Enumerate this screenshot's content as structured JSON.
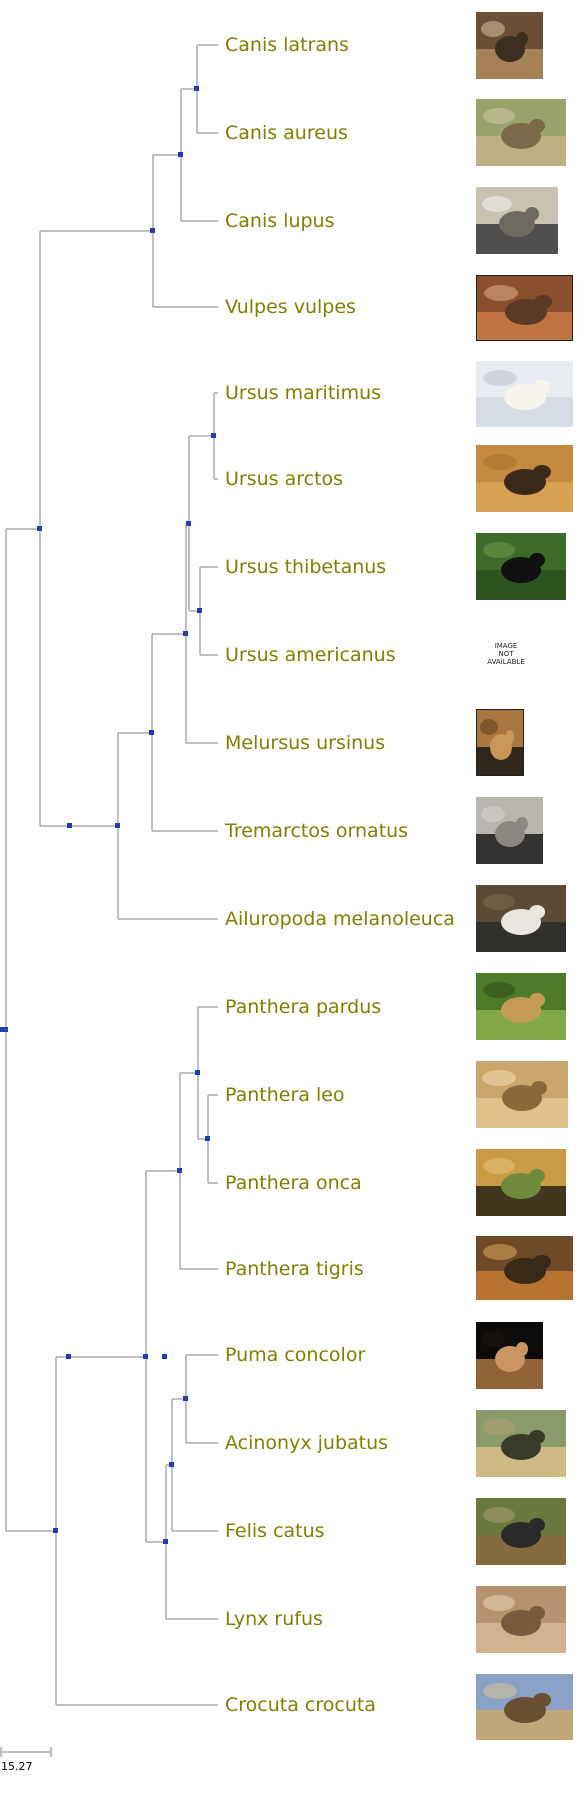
{
  "tree": {
    "leaves": [
      {
        "id": "canis-latrans",
        "label": "Canis latrans",
        "image": "coyote",
        "colors": [
          "#6b4f34",
          "#b08a5c",
          "#3d2f22",
          "#d9c3a0"
        ]
      },
      {
        "id": "canis-aureus",
        "label": "Canis aureus",
        "image": "golden-jackal",
        "colors": [
          "#9aa36b",
          "#c4b38a",
          "#7c6a4c",
          "#d2c9a6"
        ]
      },
      {
        "id": "canis-lupus",
        "label": "Canis lupus",
        "image": "wolf",
        "colors": [
          "#c9c2b3",
          "#3a3a3a",
          "#6e6a62",
          "#f2f2f2"
        ]
      },
      {
        "id": "vulpes-vulpes",
        "label": "Vulpes vulpes",
        "image": "red-fox",
        "colors": [
          "#8a4f2d",
          "#c97a45",
          "#5b3a26",
          "#e0b38a"
        ]
      },
      {
        "id": "ursus-maritimus",
        "label": "Ursus maritimus",
        "image": "polar-bear",
        "colors": [
          "#e8ecf2",
          "#d4dae3",
          "#f7f5ee",
          "#b9c1cc"
        ]
      },
      {
        "id": "ursus-arctos",
        "label": "Ursus arctos",
        "image": "brown-bear",
        "colors": [
          "#c48a3f",
          "#d9a456",
          "#3b2a1c",
          "#a8702e"
        ]
      },
      {
        "id": "ursus-thibetanus",
        "label": "Ursus thibetanus",
        "image": "asiatic-black-bear",
        "colors": [
          "#3f6b2a",
          "#2b4d1f",
          "#111111",
          "#6e9a45"
        ]
      },
      {
        "id": "ursus-americanus",
        "label": "Ursus americanus",
        "image": "not-available",
        "not_available_text": [
          "IMAGE",
          "NOT",
          "AVAILABLE"
        ]
      },
      {
        "id": "melursus-ursinus",
        "label": "Melursus ursinus",
        "image": "sloth-bear",
        "colors": [
          "#a8763f",
          "#1c1a18",
          "#c99658",
          "#5a3f23"
        ]
      },
      {
        "id": "tremarctos-ornatus",
        "label": "Tremarctos ornatus",
        "image": "spectacled-bear",
        "colors": [
          "#b9b6b0",
          "#1a1a1a",
          "#8c8780",
          "#d8d4cc"
        ]
      },
      {
        "id": "ailuropoda-melanoleuca",
        "label": "Ailuropoda melanoleuca",
        "image": "giant-panda",
        "colors": [
          "#5b4a35",
          "#2a2a2a",
          "#e8e6df",
          "#7d6a4f"
        ]
      },
      {
        "id": "panthera-pardus",
        "label": "Panthera pardus",
        "image": "leopard",
        "colors": [
          "#4f7a2a",
          "#8ab04a",
          "#c49a55",
          "#2f4a1a"
        ]
      },
      {
        "id": "panthera-leo",
        "label": "Panthera leo",
        "image": "lion",
        "colors": [
          "#c9a76a",
          "#e0c48f",
          "#8a6a3a",
          "#f0dcb0"
        ]
      },
      {
        "id": "panthera-onca",
        "label": "Panthera onca",
        "image": "jaguar",
        "colors": [
          "#c99b45",
          "#2a2418",
          "#6e8a3a",
          "#e6c27a"
        ]
      },
      {
        "id": "panthera-tigris",
        "label": "Panthera tigris",
        "image": "tiger",
        "colors": [
          "#6e4a26",
          "#c47a35",
          "#3a2a18",
          "#e0a860"
        ]
      },
      {
        "id": "puma-concolor",
        "label": "Puma concolor",
        "image": "puma",
        "colors": [
          "#0d0b09",
          "#a8743f",
          "#c99560",
          "#1f1810"
        ]
      },
      {
        "id": "acinonyx-jubatus",
        "label": "Acinonyx jubatus",
        "image": "cheetah",
        "colors": [
          "#8a9a6a",
          "#d9c08a",
          "#3a3a2a",
          "#b6a070"
        ]
      },
      {
        "id": "felis-catus",
        "label": "Felis catus",
        "image": "cat",
        "colors": [
          "#6a7a3f",
          "#8a6a3f",
          "#2a2a2a",
          "#a89a70"
        ]
      },
      {
        "id": "lynx-rufus",
        "label": "Lynx rufus",
        "image": "bobcat",
        "colors": [
          "#b59270",
          "#d6b896",
          "#7a5a3e",
          "#e8d6bc"
        ]
      },
      {
        "id": "crocuta-crocuta",
        "label": "Crocuta crocuta",
        "image": "spotted-hyena",
        "colors": [
          "#8aa0c4",
          "#c9a86a",
          "#6a5030",
          "#d8c49a"
        ]
      }
    ],
    "topology": [
      [
        [
          [
            [
              [
                "canis-latrans",
                "canis-aureus"
              ],
              "canis-lupus"
            ],
            "vulpes-vulpes"
          ],
          [
            [
              [
                [
                  [
                    "ursus-maritimus",
                    "ursus-arctos"
                  ],
                  [
                    "ursus-thibetanus",
                    "ursus-americanus"
                  ]
                ],
                "melursus-ursinus"
              ],
              "tremarctos-ornatus"
            ],
            "ailuropoda-melanoleuca"
          ]
        ],
        [
          [
            [
              [
                "panthera-pardus",
                [
                  "panthera-leo",
                  "panthera-onca"
                ]
              ],
              "panthera-tigris"
            ],
            [
              [
                [
                  "puma-concolor",
                  "acinonyx-jubatus"
                ],
                "felis-catus"
              ],
              "lynx-rufus"
            ]
          ],
          "crocuta-crocuta"
        ]
      ]
    ],
    "line_color": "#808080",
    "node_color": "#1c3fb5",
    "label_color": "#808000"
  },
  "scale_bar": {
    "label": "15.27"
  }
}
